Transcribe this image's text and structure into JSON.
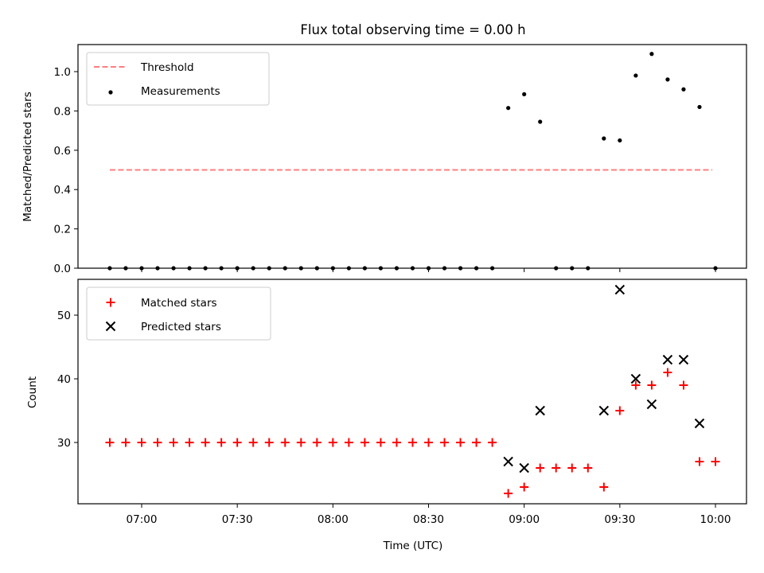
{
  "chart_data": [
    {
      "type": "scatter",
      "title": "Flux total observing time = 0.00 h",
      "xlabel": "",
      "ylabel": "Matched/Predicted stars",
      "ylim": [
        0,
        1.13
      ],
      "yticks": [
        "0.0",
        "0.2",
        "0.4",
        "0.6",
        "0.8",
        "1.0"
      ],
      "legend_position": "top-left",
      "grid": false,
      "series": [
        {
          "name": "Threshold",
          "style": "dashed-line",
          "color": "#ff7f7f",
          "x": [
            "06:50",
            "09:59"
          ],
          "y": [
            0.5,
            0.5
          ]
        },
        {
          "name": "Measurements",
          "style": "dot",
          "color": "#000000",
          "x": [
            "06:50",
            "06:55",
            "07:00",
            "07:05",
            "07:10",
            "07:15",
            "07:20",
            "07:25",
            "07:30",
            "07:35",
            "07:40",
            "07:45",
            "07:50",
            "07:55",
            "08:00",
            "08:05",
            "08:10",
            "08:15",
            "08:20",
            "08:25",
            "08:30",
            "08:35",
            "08:40",
            "08:45",
            "08:50",
            "08:55",
            "09:00",
            "09:05",
            "09:10",
            "09:15",
            "09:20",
            "09:25",
            "09:30",
            "09:35",
            "09:40",
            "09:45",
            "09:50",
            "09:55",
            "10:00"
          ],
          "y": [
            0,
            0,
            0,
            0,
            0,
            0,
            0,
            0,
            0,
            0,
            0,
            0,
            0,
            0,
            0,
            0,
            0,
            0,
            0,
            0,
            0,
            0,
            0,
            0,
            0,
            0.815,
            0.885,
            0.745,
            0,
            0,
            0,
            0.66,
            0.65,
            0.98,
            1.09,
            0.96,
            0.91,
            0.82,
            0
          ]
        }
      ]
    },
    {
      "type": "scatter",
      "title": "",
      "xlabel": "Time (UTC)",
      "ylabel": "Count",
      "ylim": [
        21,
        55.5
      ],
      "yticks": [
        "30",
        "40",
        "50"
      ],
      "xticks": [
        "07:00",
        "07:30",
        "08:00",
        "08:30",
        "09:00",
        "09:30",
        "10:00"
      ],
      "legend_position": "top-left",
      "grid": false,
      "series": [
        {
          "name": "Matched stars",
          "marker": "plus",
          "color": "#ff0000",
          "x": [
            "06:50",
            "06:55",
            "07:00",
            "07:05",
            "07:10",
            "07:15",
            "07:20",
            "07:25",
            "07:30",
            "07:35",
            "07:40",
            "07:45",
            "07:50",
            "07:55",
            "08:00",
            "08:05",
            "08:10",
            "08:15",
            "08:20",
            "08:25",
            "08:30",
            "08:35",
            "08:40",
            "08:45",
            "08:50",
            "08:55",
            "09:00",
            "09:05",
            "09:10",
            "09:15",
            "09:20",
            "09:25",
            "09:30",
            "09:35",
            "09:40",
            "09:45",
            "09:50",
            "09:55",
            "10:00"
          ],
          "y": [
            30,
            30,
            30,
            30,
            30,
            30,
            30,
            30,
            30,
            30,
            30,
            30,
            30,
            30,
            30,
            30,
            30,
            30,
            30,
            30,
            30,
            30,
            30,
            30,
            30,
            22,
            23,
            26,
            26,
            26,
            26,
            23,
            35,
            39,
            39,
            41,
            39,
            27,
            27
          ]
        },
        {
          "name": "Predicted stars",
          "marker": "x",
          "color": "#000000",
          "x": [
            "08:55",
            "09:00",
            "09:05",
            "09:25",
            "09:30",
            "09:35",
            "09:40",
            "09:45",
            "09:50",
            "09:55"
          ],
          "y": [
            27,
            26,
            35,
            35,
            54,
            40,
            36,
            43,
            43,
            33
          ]
        }
      ]
    }
  ]
}
